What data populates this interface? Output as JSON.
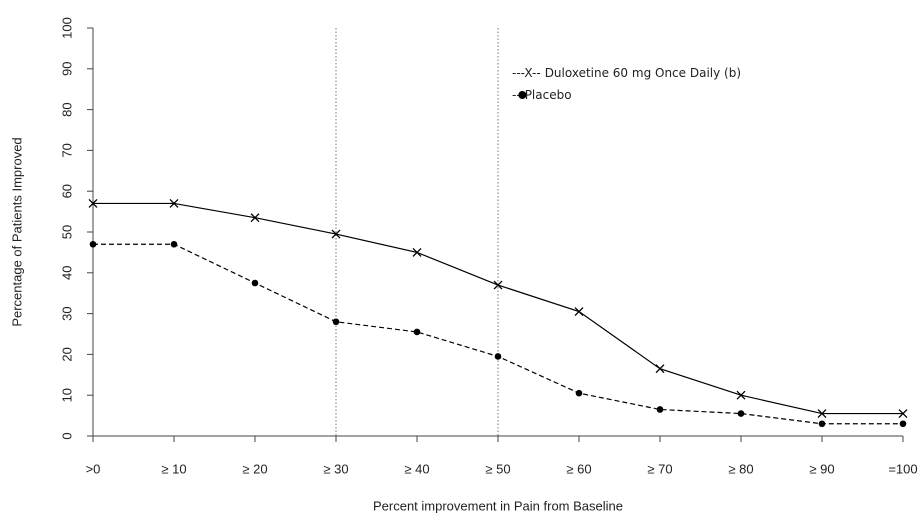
{
  "chart_data": {
    "type": "line",
    "x_label": "Percent improvement in Pain from Baseline",
    "y_label": "Percentage of Patients Improved",
    "categories": [
      ">0",
      "≥ 10",
      "≥ 20",
      "≥ 30",
      "≥ 40",
      "≥ 50",
      "≥ 60",
      "≥ 70",
      "≥ 80",
      "≥ 90",
      "=100"
    ],
    "series": [
      {
        "name": "Duloxetine 60 mg Once Daily (b)",
        "legend_prefix": "---X--",
        "color": "#000000",
        "marker": "x",
        "dash": "solid",
        "values": [
          57,
          57,
          53.5,
          49.5,
          45,
          37,
          30.5,
          16.5,
          10,
          5.5,
          5.5
        ]
      },
      {
        "name": "Placebo",
        "legend_prefix": "-",
        "legend_suffix": "-",
        "color": "#000000",
        "marker": "circle",
        "dash": "dashed",
        "values": [
          47,
          47,
          37.5,
          28,
          25.5,
          19.5,
          10.5,
          6.5,
          5.5,
          3,
          3
        ]
      }
    ],
    "ylim": [
      0,
      100
    ],
    "yticks": [
      0,
      10,
      20,
      30,
      40,
      50,
      60,
      70,
      80,
      90,
      100
    ],
    "reference_categories": [
      3,
      5
    ],
    "legend": "upper right",
    "grid": false
  }
}
